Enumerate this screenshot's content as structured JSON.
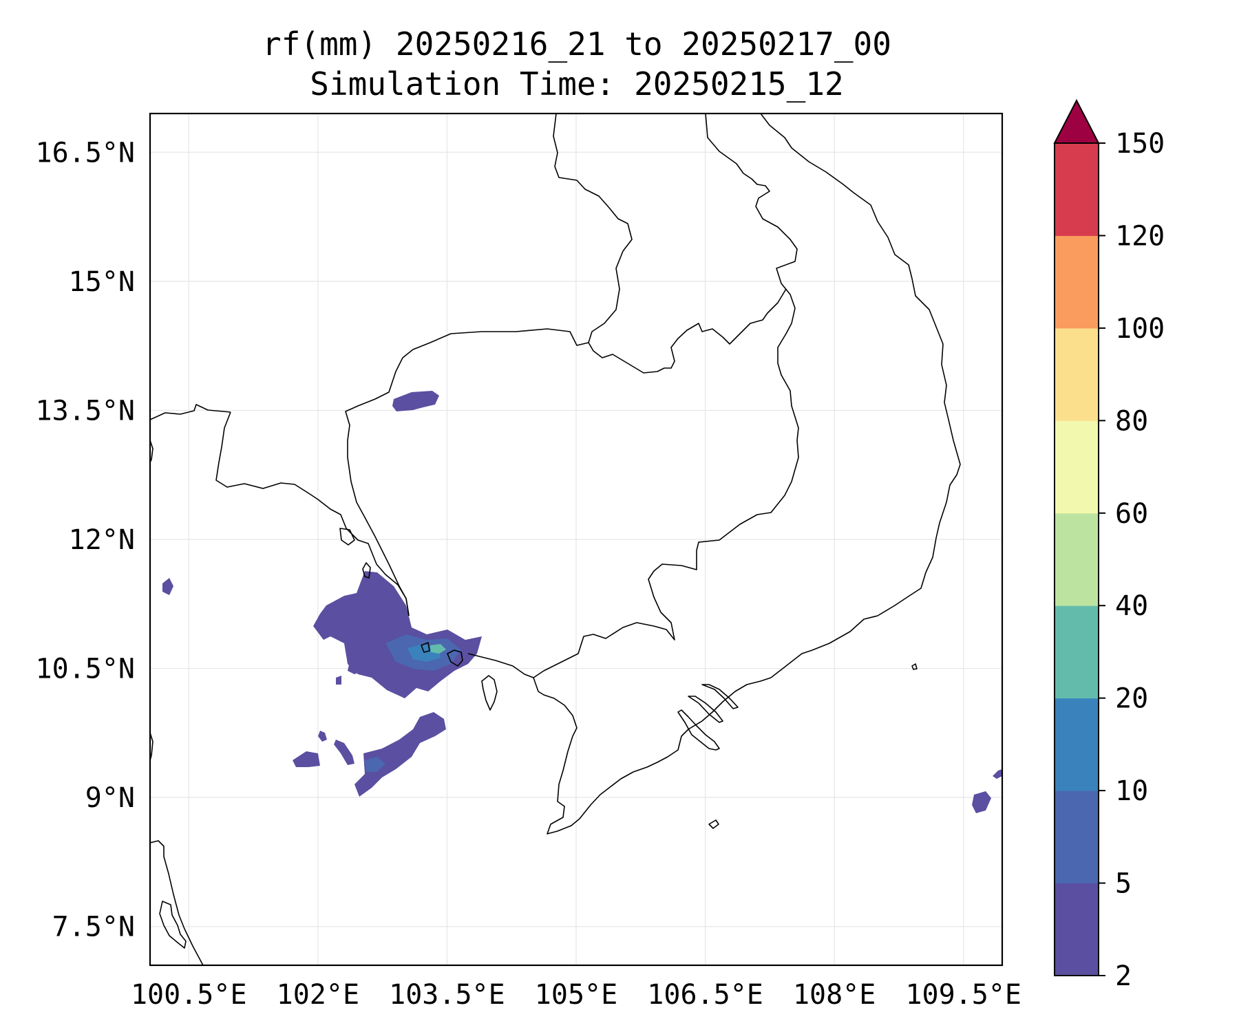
{
  "title_line1": "rf(mm) 20250216_21 to 20250217_00",
  "title_line2": "Simulation Time: 20250215_12",
  "map": {
    "lon_ticks": [
      "100.5°E",
      "102°E",
      "103.5°E",
      "105°E",
      "106.5°E",
      "108°E",
      "109.5°E"
    ],
    "lat_ticks": [
      "16.5°N",
      "15°N",
      "13.5°N",
      "12°N",
      "10.5°N",
      "9°N",
      "7.5°N"
    ],
    "lon_range": [
      100.05,
      109.95
    ],
    "lat_range": [
      7.05,
      16.95
    ]
  },
  "colorbar": {
    "tick_labels": [
      "2",
      "5",
      "10",
      "20",
      "40",
      "60",
      "80",
      "100",
      "120",
      "150"
    ],
    "colors": [
      "#5a4fa0",
      "#4a67b0",
      "#3a82bc",
      "#63bcab",
      "#bde3a1",
      "#f2f8ad",
      "#fcdf8c",
      "#f99c5d",
      "#d63c4e",
      "#9e0142"
    ],
    "extend": "max"
  }
}
